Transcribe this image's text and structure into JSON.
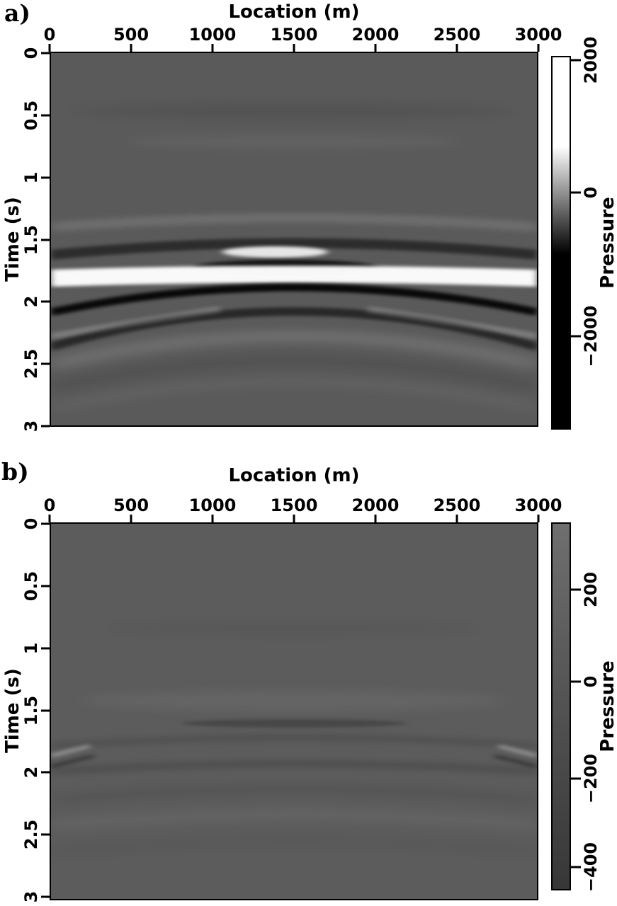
{
  "figure": {
    "panels": [
      {
        "label": "a)",
        "x_axis": {
          "title": "Location (m)",
          "ticks": [
            {
              "label": "0",
              "pos": 0
            },
            {
              "label": "500",
              "pos": 16.67
            },
            {
              "label": "1000",
              "pos": 33.33
            },
            {
              "label": "1500",
              "pos": 50
            },
            {
              "label": "2000",
              "pos": 66.67
            },
            {
              "label": "2500",
              "pos": 83.33
            },
            {
              "label": "3000",
              "pos": 100
            }
          ]
        },
        "y_axis": {
          "title": "Time (s)",
          "ticks": [
            {
              "label": "0",
              "pos": 0
            },
            {
              "label": "0.5",
              "pos": 16.67
            },
            {
              "label": "1",
              "pos": 33.33
            },
            {
              "label": "1.5",
              "pos": 50
            },
            {
              "label": "2",
              "pos": 66.67
            },
            {
              "label": "2.5",
              "pos": 83.33
            },
            {
              "label": "3",
              "pos": 100
            }
          ]
        },
        "colorbar": {
          "title": "Pressure",
          "ticks": [
            {
              "label": "2000",
              "pos": 1.1
            },
            {
              "label": "0",
              "pos": 36.6
            },
            {
              "label": "−2000",
              "pos": 75.0
            }
          ]
        }
      },
      {
        "label": "b)",
        "x_axis": {
          "title": "Location (m)",
          "ticks": [
            {
              "label": "0",
              "pos": 0
            },
            {
              "label": "500",
              "pos": 16.67
            },
            {
              "label": "1000",
              "pos": 33.33
            },
            {
              "label": "1500",
              "pos": 50
            },
            {
              "label": "2000",
              "pos": 66.67
            },
            {
              "label": "2500",
              "pos": 83.33
            },
            {
              "label": "3000",
              "pos": 100
            }
          ]
        },
        "y_axis": {
          "title": "Time (s)",
          "ticks": [
            {
              "label": "0",
              "pos": 0
            },
            {
              "label": "0.5",
              "pos": 16.67
            },
            {
              "label": "1",
              "pos": 33.33
            },
            {
              "label": "1.5",
              "pos": 50
            },
            {
              "label": "2",
              "pos": 66.67
            },
            {
              "label": "2.5",
              "pos": 83.33
            },
            {
              "label": "3",
              "pos": 100
            }
          ]
        },
        "colorbar": {
          "title": "Pressure",
          "ticks": [
            {
              "label": "200",
              "pos": 18.3
            },
            {
              "label": "0",
              "pos": 43.3
            },
            {
              "label": "−200",
              "pos": 69.6
            },
            {
              "label": "−400",
              "pos": 93.7
            }
          ]
        }
      }
    ]
  },
  "chart_data": [
    {
      "type": "heatmap",
      "panel": "a",
      "xlabel": "Location (m)",
      "x_range": [
        0,
        3000
      ],
      "x_ticks": [
        0,
        500,
        1000,
        1500,
        2000,
        2500,
        3000
      ],
      "ylabel": "Time (s)",
      "y_range": [
        0,
        3
      ],
      "y_ticks": [
        0,
        0.5,
        1,
        1.5,
        2,
        2.5,
        3
      ],
      "y_direction": "down",
      "colorbar": {
        "label": "Pressure",
        "ticks": [
          2000,
          0,
          -2000
        ],
        "top_value_approx": 2100,
        "bottom_value_approx": -3500,
        "colormap": "grayscale, white = positive, black = negative, clipped to solid white/black beyond roughly ±800"
      },
      "background_value": 0,
      "background_gray": "#5a5a5a",
      "description": "Seismic wavefield section: strong arched white/black events between 1.4 s and 2.4 s spanning all locations, with localized strong lobes near x = 1400 m and crossing dipping limbs on the flanks; faint broad arcs above (0.4-1.3 s) and below (2.3-2.8 s).",
      "events": [
        {
          "time_s": 1.45,
          "shape": "full-width arc sagging to ~1.6 s at edges",
          "polarity": "negative",
          "strength": "moderate"
        },
        {
          "time_s": 1.58,
          "location_m": 1400,
          "shape": "localized lens",
          "polarity": "positive",
          "strength": "strong"
        },
        {
          "time_s": 1.72,
          "location_m": 1400,
          "shape": "localized lens",
          "polarity": "negative",
          "strength": "strong"
        },
        {
          "time_s": 1.82,
          "shape": "full-width band, slightly arched",
          "polarity": "positive",
          "strength": "strongest"
        },
        {
          "time_s": 1.9,
          "shape": "flat band beneath main white band",
          "polarity": "negative",
          "strength": "strong"
        },
        {
          "time_s": 1.97,
          "shape": "flat band",
          "polarity": "positive",
          "strength": "strong"
        },
        {
          "time_s_center": 1.9,
          "time_s_edges": 2.1,
          "shape": "convex-up arc crossing flat bands",
          "polarity": "negative",
          "strength": "strong"
        },
        {
          "time_s_center": 2.08,
          "time_s_edges": 2.35,
          "shape": "deeper convex-up arc",
          "polarity": "negative",
          "strength": "moderate"
        },
        {
          "time_s_range": "2.2-2.8",
          "shape": "broad faint convex-up arcs",
          "polarity": "alternating",
          "strength": "very weak"
        }
      ]
    },
    {
      "type": "heatmap",
      "panel": "b",
      "xlabel": "Location (m)",
      "x_range": [
        0,
        3000
      ],
      "x_ticks": [
        0,
        500,
        1000,
        1500,
        2000,
        2500,
        3000
      ],
      "ylabel": "Time (s)",
      "y_range": [
        0,
        3
      ],
      "y_ticks": [
        0,
        0.5,
        1,
        1.5,
        2,
        2.5,
        3
      ],
      "y_direction": "down",
      "colorbar": {
        "label": "Pressure",
        "ticks": [
          200,
          0,
          -200,
          -400
        ],
        "top_value_approx": 360,
        "bottom_value_approx": -460,
        "colormap": "same grayscale as panel a; narrow amplitude range so bar spans only mid grays (light gray to dark gray)"
      },
      "background_value": 0,
      "background_gray": "#5c5c5c",
      "description": "Residual wavefield with same geometry as panel a but roughly 5-10x weaker amplitudes: only very faint arcs between 1.4 s and 2.6 s, a short dark band near 1.57 s around x = 1400 m, and small high-contrast ripples at the lateral edges near 1.75-1.95 s.",
      "events": [
        {
          "time_s": 1.57,
          "location_m": 1400,
          "shape": "short dark band",
          "polarity": "negative",
          "strength": "weak"
        },
        {
          "time_s_center": 1.75,
          "time_s_edges": 1.9,
          "shape": "faint convex-up arc",
          "polarity": "negative",
          "strength": "very weak"
        },
        {
          "time_s_range": "1.75-1.95",
          "location": "lateral edges",
          "shape": "small dipping ripples",
          "polarity": "alternating",
          "strength": "weak"
        },
        {
          "time_s_range": "2.0-2.6",
          "shape": "broad faint convex-up arcs",
          "polarity": "alternating",
          "strength": "very weak"
        }
      ]
    }
  ]
}
